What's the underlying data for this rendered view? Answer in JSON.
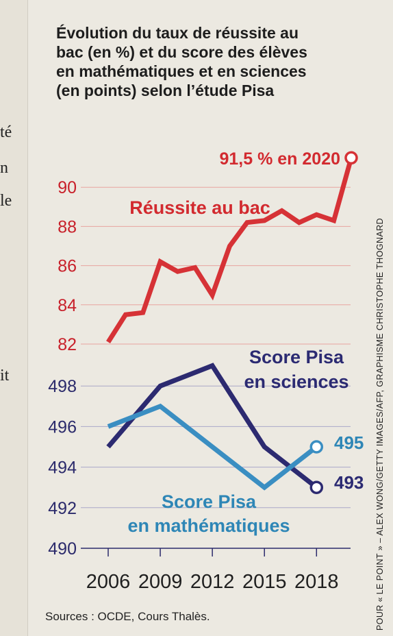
{
  "title": "Évolution du taux de réussite au bac (en %) et du score des élèves en mathématiques et en sciences (en points) selon l’étude Pisa",
  "title_lines": [
    "Évolution du taux de réussite au",
    "bac (en %) et du score des élèves",
    "en mathématiques et en sciences",
    "(en points) selon l’étude Pisa"
  ],
  "sources": "Sources : OCDE, Cours Thalès.",
  "credit": "POUR « LE POINT » – ALEX WONG/GETTY IMAGES/AFP, GRAPHISME CHRISTOPHE THOGNARD",
  "colors": {
    "bac": "#d63236",
    "sciences": "#2c2a70",
    "maths": "#3a8ec2"
  },
  "chart_data": {
    "type": "line",
    "x_ticks": [
      "2006",
      "2009",
      "2012",
      "2015",
      "2018"
    ],
    "xlim": [
      2006,
      2020
    ],
    "bac_axis": {
      "ticks": [
        "82",
        "84",
        "86",
        "88",
        "90"
      ],
      "ylim": [
        82,
        92
      ]
    },
    "pisa_axis": {
      "ticks": [
        "490",
        "492",
        "494",
        "496",
        "498"
      ],
      "ylim": [
        490,
        500
      ]
    },
    "series": [
      {
        "name": "Réussite au bac",
        "axis": "bac",
        "x": [
          2006,
          2007,
          2008,
          2009,
          2010,
          2011,
          2012,
          2013,
          2014,
          2015,
          2016,
          2017,
          2018,
          2019,
          2020
        ],
        "values": [
          82.1,
          83.5,
          83.6,
          86.2,
          85.7,
          85.9,
          84.5,
          87.0,
          88.2,
          88.3,
          88.8,
          88.2,
          88.6,
          88.3,
          91.5
        ]
      },
      {
        "name": "Score Pisa en sciences",
        "axis": "pisa",
        "x": [
          2006,
          2009,
          2012,
          2015,
          2018
        ],
        "values": [
          495,
          498,
          499,
          495,
          493
        ]
      },
      {
        "name": "Score Pisa en mathématiques",
        "axis": "pisa",
        "x": [
          2006,
          2009,
          2012,
          2015,
          2018
        ],
        "values": [
          496,
          497,
          495,
          493,
          495
        ]
      }
    ],
    "labels": {
      "bac_series": "Réussite au bac",
      "bac_end": "91,5 % en 2020",
      "sciences_l1": "Score Pisa",
      "sciences_l2": "en sciences",
      "maths_l1": "Score Pisa",
      "maths_l2": "en mathématiques",
      "sciences_end": "493",
      "maths_end": "495"
    }
  }
}
